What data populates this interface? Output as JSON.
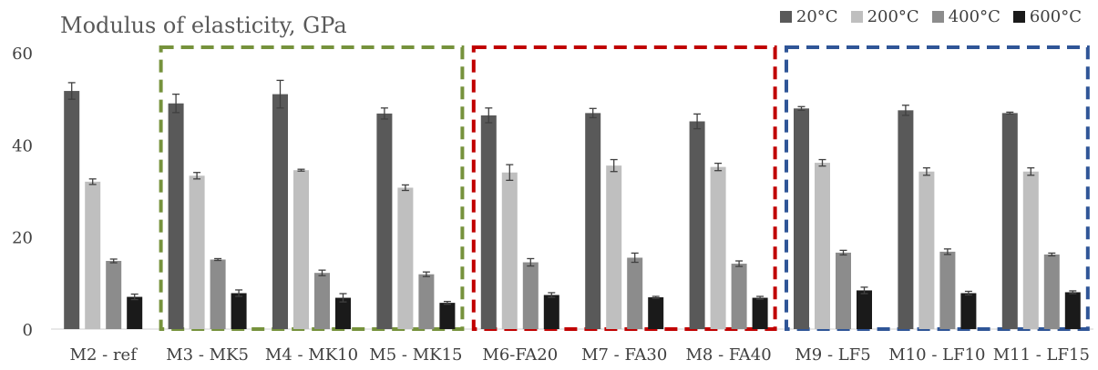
{
  "chart_data": {
    "type": "bar",
    "title": "Modulus of elasticity, GPa",
    "xlabel": "",
    "ylabel": "",
    "ylim": [
      0,
      60
    ],
    "yticks": [
      0,
      20,
      40,
      60
    ],
    "grid": false,
    "legend_position": "top-right",
    "categories": [
      "M2 - ref",
      "M3 - MK5",
      "M4 - MK10",
      "M5 - MK15",
      "M6-FA20",
      "M7 - FA30",
      "M8 - FA40",
      "M9 - LF5",
      "M10 - LF10",
      "M11 - LF15"
    ],
    "series": [
      {
        "name": "20°C",
        "color": "#595959",
        "values": [
          51.7,
          49.0,
          51.0,
          46.8,
          46.4,
          46.9,
          45.1,
          47.9,
          47.5,
          46.9
        ],
        "errors": [
          1.8,
          2.0,
          3.0,
          1.2,
          1.6,
          1.0,
          1.6,
          0.4,
          1.1,
          0.2
        ]
      },
      {
        "name": "200°C",
        "color": "#bfbfbf",
        "values": [
          32.0,
          33.3,
          34.5,
          30.7,
          34.0,
          35.5,
          35.2,
          36.1,
          34.2,
          34.2
        ],
        "errors": [
          0.6,
          0.7,
          0.2,
          0.6,
          1.7,
          1.3,
          0.8,
          0.7,
          0.8,
          0.8
        ]
      },
      {
        "name": "400°C",
        "color": "#8c8c8c",
        "values": [
          14.8,
          15.1,
          12.2,
          11.9,
          14.5,
          15.5,
          14.2,
          16.6,
          16.8,
          16.2
        ],
        "errors": [
          0.4,
          0.2,
          0.6,
          0.5,
          0.8,
          1.0,
          0.6,
          0.5,
          0.6,
          0.3
        ]
      },
      {
        "name": "600°C",
        "color": "#1a1a1a",
        "values": [
          7.0,
          7.8,
          6.8,
          5.7,
          7.4,
          6.9,
          6.8,
          8.4,
          7.8,
          8.0
        ],
        "errors": [
          0.6,
          0.7,
          0.9,
          0.3,
          0.5,
          0.2,
          0.3,
          0.7,
          0.4,
          0.3
        ]
      }
    ],
    "groups": [
      {
        "from": 1,
        "to": 3,
        "color": "#76923c"
      },
      {
        "from": 4,
        "to": 6,
        "color": "#c00000"
      },
      {
        "from": 7,
        "to": 9,
        "color": "#2f5597"
      }
    ]
  }
}
